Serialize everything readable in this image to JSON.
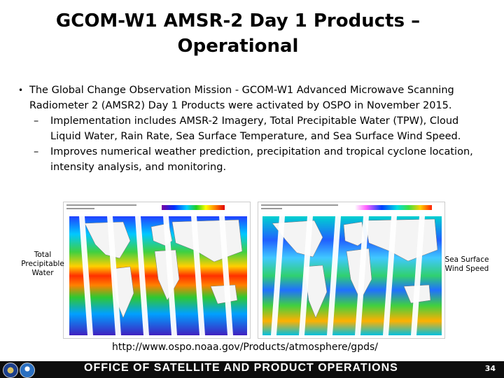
{
  "slide": {
    "title_line1": "GCOM-W1 AMSR-2  Day 1 Products –",
    "title_line2": "Operational",
    "bullet": "The Global Change Observation Mission  - GCOM-W1 Advanced Microwave Scanning Radiometer 2 (AMSR2) Day 1 Products  were activated by OSPO in November 2015.",
    "sub_bullets": [
      "Implementation includes AMSR-2 Imagery, Total Precipitable Water (TPW), Cloud Liquid Water, Rain Rate, Sea Surface Temperature,  and Sea Surface Wind Speed.",
      "Improves numerical weather prediction, precipitation and tropical cyclone location, intensity analysis, and monitoring."
    ],
    "left_caption": "Total Precipitable Water",
    "right_caption": "Sea Surface Wind Speed",
    "url": "http://www.ospo.noaa.gov/Products/atmosphere/gpds/"
  },
  "footer": {
    "text": "OFFICE OF SATELLITE AND PRODUCT OPERATIONS",
    "page_number": "34"
  },
  "colors": {
    "footer_bg": "#0d0d0d",
    "seal_left": "#1c3f8c",
    "seal_right": "#2a6fc0"
  },
  "icons": [
    "dept-commerce-seal-icon",
    "noaa-logo-icon"
  ]
}
